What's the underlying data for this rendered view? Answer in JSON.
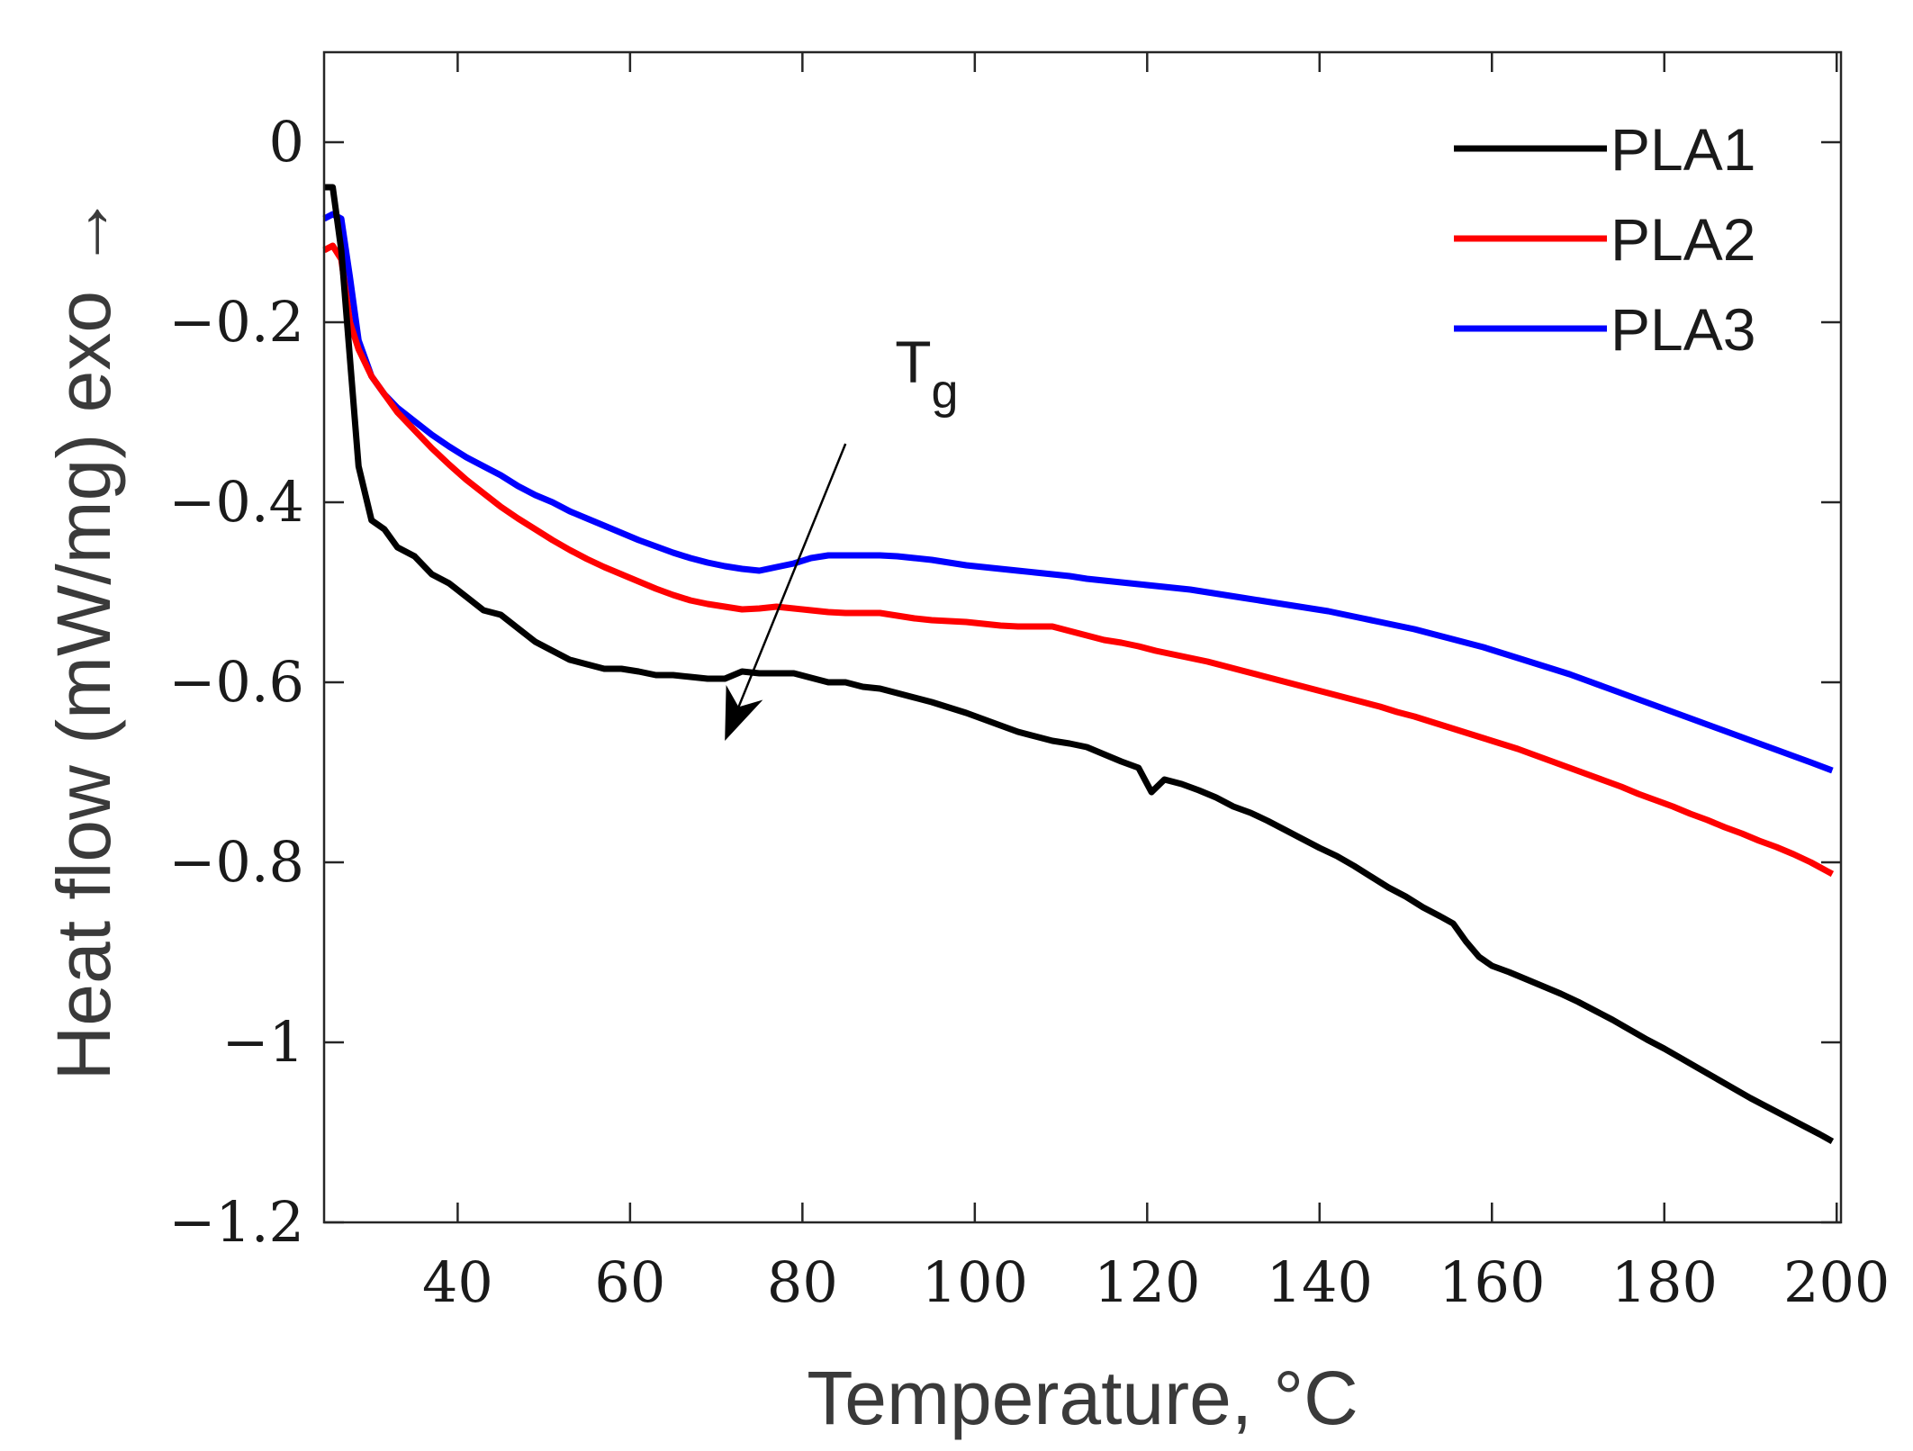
{
  "chart_data": {
    "type": "line",
    "title": "",
    "xlabel": "Temperature, °C",
    "ylabel": "Heat flow (mW/mg) exo →",
    "xlim": [
      24.5,
      200.5
    ],
    "ylim": [
      -1.2,
      0.1
    ],
    "xticks": [
      40,
      60,
      80,
      100,
      120,
      140,
      160,
      180,
      200
    ],
    "xtick_labels": [
      "40",
      "60",
      "80",
      "100",
      "120",
      "140",
      "160",
      "180",
      "200"
    ],
    "yticks": [
      0,
      -0.2,
      -0.4,
      -0.6,
      -0.8,
      -1,
      -1.2
    ],
    "ytick_labels": [
      "0",
      "−0.2",
      "−0.4",
      "−0.6",
      "−0.8",
      "−1",
      "−1.2"
    ],
    "grid": false,
    "legend_position": "top-right",
    "series": [
      {
        "name": "PLA1",
        "color": "#000000",
        "x": [
          24.5,
          25.5,
          26.5,
          27.5,
          28.5,
          30,
          31.5,
          33,
          35,
          37,
          39,
          41,
          43,
          45,
          47,
          49,
          51,
          53,
          55,
          57,
          59,
          61,
          63,
          65,
          67,
          69,
          71,
          73,
          75,
          77,
          79,
          81,
          83,
          85,
          87,
          89,
          91,
          93,
          95,
          97,
          99,
          101,
          103,
          105,
          107,
          109,
          111,
          113,
          115,
          117,
          119,
          120.5,
          122,
          124,
          126,
          128,
          130,
          132,
          134,
          136,
          138,
          140,
          142,
          144,
          146,
          148,
          150,
          152,
          154,
          155.5,
          157,
          158.5,
          160,
          162,
          164,
          166,
          168,
          170,
          172,
          174,
          176,
          178,
          180,
          182,
          184,
          186,
          188,
          190,
          192,
          194,
          196,
          198,
          199.5
        ],
        "y": [
          -0.05,
          -0.05,
          -0.12,
          -0.24,
          -0.36,
          -0.42,
          -0.43,
          -0.45,
          -0.46,
          -0.48,
          -0.49,
          -0.505,
          -0.52,
          -0.525,
          -0.54,
          -0.555,
          -0.565,
          -0.575,
          -0.58,
          -0.585,
          -0.585,
          -0.588,
          -0.592,
          -0.592,
          -0.594,
          -0.596,
          -0.596,
          -0.588,
          -0.59,
          -0.59,
          -0.59,
          -0.595,
          -0.6,
          -0.6,
          -0.605,
          -0.607,
          -0.612,
          -0.617,
          -0.622,
          -0.628,
          -0.634,
          -0.641,
          -0.648,
          -0.655,
          -0.66,
          -0.665,
          -0.668,
          -0.672,
          -0.68,
          -0.688,
          -0.695,
          -0.722,
          -0.708,
          -0.713,
          -0.72,
          -0.728,
          -0.738,
          -0.745,
          -0.754,
          -0.764,
          -0.774,
          -0.784,
          -0.793,
          -0.804,
          -0.816,
          -0.828,
          -0.838,
          -0.85,
          -0.86,
          -0.868,
          -0.888,
          -0.905,
          -0.915,
          -0.922,
          -0.93,
          -0.938,
          -0.946,
          -0.955,
          -0.965,
          -0.975,
          -0.986,
          -0.997,
          -1.007,
          -1.018,
          -1.029,
          -1.04,
          -1.051,
          -1.062,
          -1.072,
          -1.082,
          -1.092,
          -1.102,
          -1.11
        ]
      },
      {
        "name": "PLA2",
        "color": "#ff0000",
        "x": [
          24.5,
          25.5,
          26.5,
          27.5,
          28.5,
          30,
          31.5,
          33,
          35,
          37,
          39,
          41,
          43,
          45,
          47,
          49,
          51,
          53,
          55,
          57,
          59,
          61,
          63,
          65,
          67,
          69,
          71,
          73,
          75,
          77,
          79,
          81,
          83,
          85,
          87,
          89,
          91,
          93,
          95,
          97,
          99,
          101,
          103,
          105,
          107,
          109,
          111,
          113,
          115,
          117,
          119,
          121,
          123,
          125,
          127,
          129,
          131,
          133,
          135,
          137,
          139,
          141,
          143,
          145,
          147,
          149,
          151,
          153,
          155,
          157,
          159,
          161,
          163,
          165,
          167,
          169,
          171,
          173,
          175,
          177,
          179,
          181,
          183,
          185,
          187,
          189,
          191,
          193,
          195,
          197,
          199.5
        ],
        "y": [
          -0.12,
          -0.115,
          -0.13,
          -0.2,
          -0.23,
          -0.26,
          -0.28,
          -0.3,
          -0.32,
          -0.34,
          -0.358,
          -0.375,
          -0.39,
          -0.405,
          -0.418,
          -0.43,
          -0.442,
          -0.453,
          -0.463,
          -0.472,
          -0.48,
          -0.488,
          -0.496,
          -0.503,
          -0.509,
          -0.513,
          -0.516,
          -0.519,
          -0.518,
          -0.516,
          -0.518,
          -0.52,
          -0.522,
          -0.523,
          -0.523,
          -0.523,
          -0.526,
          -0.529,
          -0.531,
          -0.532,
          -0.533,
          -0.535,
          -0.537,
          -0.538,
          -0.538,
          -0.538,
          -0.543,
          -0.548,
          -0.553,
          -0.556,
          -0.56,
          -0.565,
          -0.569,
          -0.573,
          -0.577,
          -0.582,
          -0.587,
          -0.592,
          -0.597,
          -0.602,
          -0.607,
          -0.612,
          -0.617,
          -0.622,
          -0.627,
          -0.633,
          -0.638,
          -0.644,
          -0.65,
          -0.656,
          -0.662,
          -0.668,
          -0.674,
          -0.681,
          -0.688,
          -0.695,
          -0.702,
          -0.709,
          -0.716,
          -0.724,
          -0.731,
          -0.738,
          -0.746,
          -0.753,
          -0.761,
          -0.768,
          -0.776,
          -0.783,
          -0.791,
          -0.8,
          -0.813
        ]
      },
      {
        "name": "PLA3",
        "color": "#0000ff",
        "x": [
          24.5,
          25.5,
          26.5,
          27.5,
          28.5,
          30,
          31.5,
          33,
          35,
          37,
          39,
          41,
          43,
          45,
          47,
          49,
          51,
          53,
          55,
          57,
          59,
          61,
          63,
          65,
          67,
          69,
          71,
          73,
          75,
          77,
          79,
          81,
          83,
          85,
          87,
          89,
          91,
          93,
          95,
          97,
          99,
          101,
          103,
          105,
          107,
          109,
          111,
          113,
          115,
          117,
          119,
          121,
          123,
          125,
          127,
          129,
          131,
          133,
          135,
          137,
          139,
          141,
          143,
          145,
          147,
          149,
          151,
          153,
          155,
          157,
          159,
          161,
          163,
          165,
          167,
          169,
          171,
          173,
          175,
          177,
          179,
          181,
          183,
          185,
          187,
          189,
          191,
          193,
          195,
          197,
          199.5
        ],
        "y": [
          -0.085,
          -0.08,
          -0.085,
          -0.15,
          -0.22,
          -0.26,
          -0.28,
          -0.295,
          -0.31,
          -0.325,
          -0.338,
          -0.35,
          -0.36,
          -0.37,
          -0.382,
          -0.392,
          -0.4,
          -0.41,
          -0.418,
          -0.426,
          -0.434,
          -0.442,
          -0.449,
          -0.456,
          -0.462,
          -0.467,
          -0.471,
          -0.474,
          -0.476,
          -0.472,
          -0.468,
          -0.462,
          -0.459,
          -0.459,
          -0.459,
          -0.459,
          -0.46,
          -0.462,
          -0.464,
          -0.467,
          -0.47,
          -0.472,
          -0.474,
          -0.476,
          -0.478,
          -0.48,
          -0.482,
          -0.485,
          -0.487,
          -0.489,
          -0.491,
          -0.493,
          -0.495,
          -0.497,
          -0.5,
          -0.503,
          -0.506,
          -0.509,
          -0.512,
          -0.515,
          -0.518,
          -0.521,
          -0.525,
          -0.529,
          -0.533,
          -0.537,
          -0.541,
          -0.546,
          -0.551,
          -0.556,
          -0.561,
          -0.567,
          -0.573,
          -0.579,
          -0.585,
          -0.591,
          -0.598,
          -0.605,
          -0.612,
          -0.619,
          -0.626,
          -0.633,
          -0.64,
          -0.647,
          -0.654,
          -0.661,
          -0.668,
          -0.675,
          -0.682,
          -0.689,
          -0.698
        ]
      }
    ],
    "annotations": [
      {
        "text": "T",
        "subscript": "g",
        "arrow_from": [
          85,
          -0.335
        ],
        "arrow_to": [
          71,
          -0.665
        ]
      }
    ]
  }
}
